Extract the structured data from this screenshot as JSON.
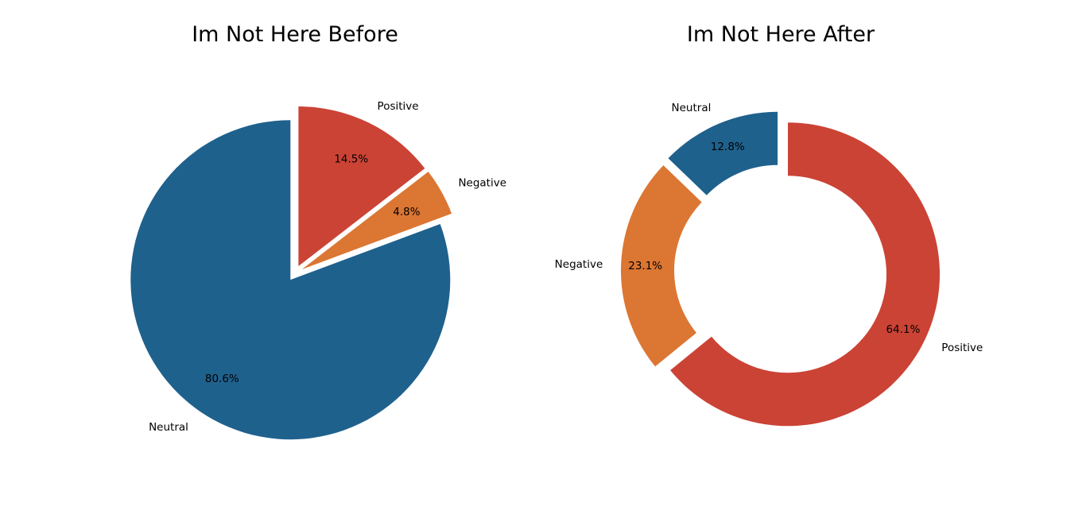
{
  "chart_data": [
    {
      "type": "pie",
      "title": "Im Not Here Before",
      "slices": [
        {
          "label": "Neutral",
          "value": 80.6,
          "pct_text": "80.6%",
          "color": "#1f618d"
        },
        {
          "label": "Negative",
          "value": 4.8,
          "pct_text": "4.8%",
          "color": "#dc7633"
        },
        {
          "label": "Positive",
          "value": 14.5,
          "pct_text": "14.5%",
          "color": "#cb4335"
        }
      ],
      "exploded": true,
      "donut": false
    },
    {
      "type": "pie",
      "title": "Im Not Here After",
      "slices": [
        {
          "label": "Neutral",
          "value": 12.8,
          "pct_text": "12.8%",
          "color": "#1f618d"
        },
        {
          "label": "Negative",
          "value": 23.1,
          "pct_text": "23.1%",
          "color": "#dc7633"
        },
        {
          "label": "Positive",
          "value": 64.1,
          "pct_text": "64.1%",
          "color": "#cb4335"
        }
      ],
      "exploded": true,
      "donut": true
    }
  ]
}
